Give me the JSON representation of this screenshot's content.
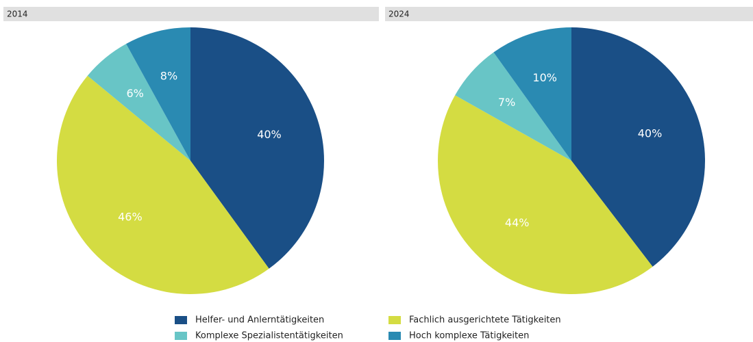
{
  "chart_data": [
    {
      "type": "pie",
      "title": "2014",
      "categories": [
        "Helfer- und Anlerntätigkeiten",
        "Fachlich ausgerichtete Tätigkeiten",
        "Komplexe Spezialistentätigkeiten",
        "Hoch komplexe Tätigkeiten"
      ],
      "values": [
        40,
        46,
        6,
        8
      ],
      "value_labels": [
        "40%",
        "46%",
        "6%",
        "8%"
      ],
      "colors": [
        "#1a4f86",
        "#d4dc42",
        "#68c5c6",
        "#2a8ab2"
      ]
    },
    {
      "type": "pie",
      "title": "2024",
      "categories": [
        "Helfer- und Anlerntätigkeiten",
        "Fachlich ausgerichtete Tätigkeiten",
        "Komplexe Spezialistentätigkeiten",
        "Hoch komplexe Tätigkeiten"
      ],
      "values": [
        40,
        44,
        7,
        10
      ],
      "value_labels": [
        "40%",
        "44%",
        "7%",
        "10%"
      ],
      "colors": [
        "#1a4f86",
        "#d4dc42",
        "#68c5c6",
        "#2a8ab2"
      ]
    }
  ]
}
